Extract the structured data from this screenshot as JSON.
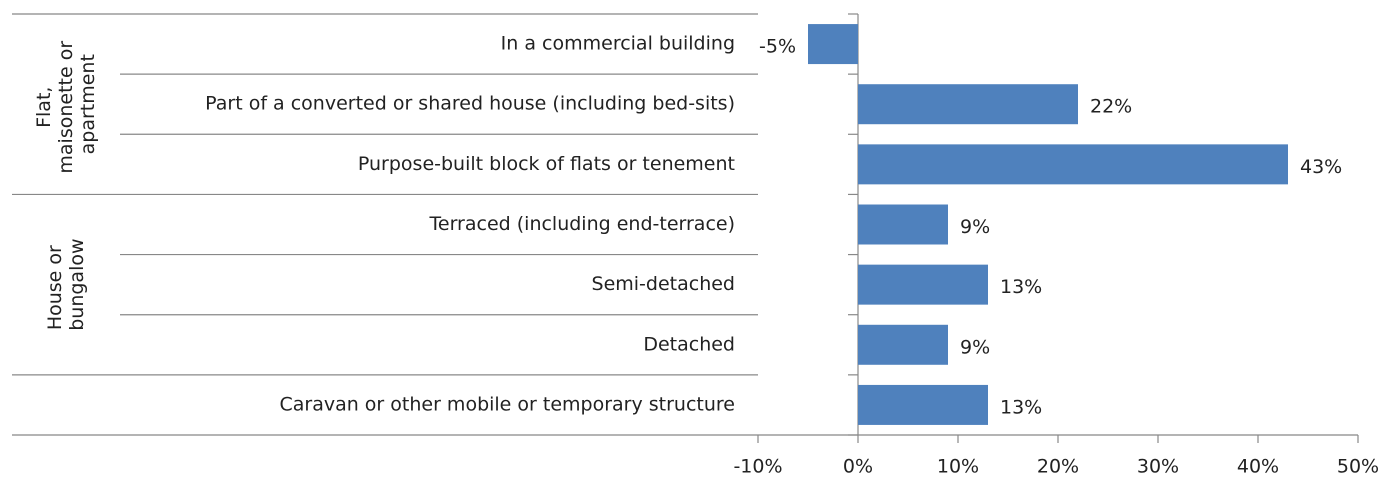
{
  "chart_data": {
    "type": "hbar",
    "categories": [
      "In a commercial building",
      "Part of a converted or shared house (including bed-sits)",
      "Purpose-built block of flats or tenement",
      "Terraced (including  end-terrace)",
      "Semi-detached",
      "Detached",
      "Caravan or other mobile or temporary structure"
    ],
    "category_groups": [
      "Flat, maisonette or apartment",
      "Flat, maisonette or apartment",
      "Flat, maisonette or apartment",
      "House or bungalow",
      "House or bungalow",
      "House or bungalow",
      null
    ],
    "values": [
      -5,
      22,
      43,
      9,
      13,
      9,
      13
    ],
    "value_labels": [
      "-5%",
      "22%",
      "43%",
      "9%",
      "13%",
      "9%",
      "13%"
    ],
    "color": "#4f81bd",
    "xlim": [
      -10,
      50
    ],
    "xticks": [
      {
        "value": -10,
        "label": "-10%"
      },
      {
        "value": 0,
        "label": "0%"
      },
      {
        "value": 10,
        "label": "10%"
      },
      {
        "value": 20,
        "label": "20%"
      },
      {
        "value": 30,
        "label": "30%"
      },
      {
        "value": 40,
        "label": "40%"
      },
      {
        "value": 50,
        "label": "50%"
      }
    ]
  }
}
